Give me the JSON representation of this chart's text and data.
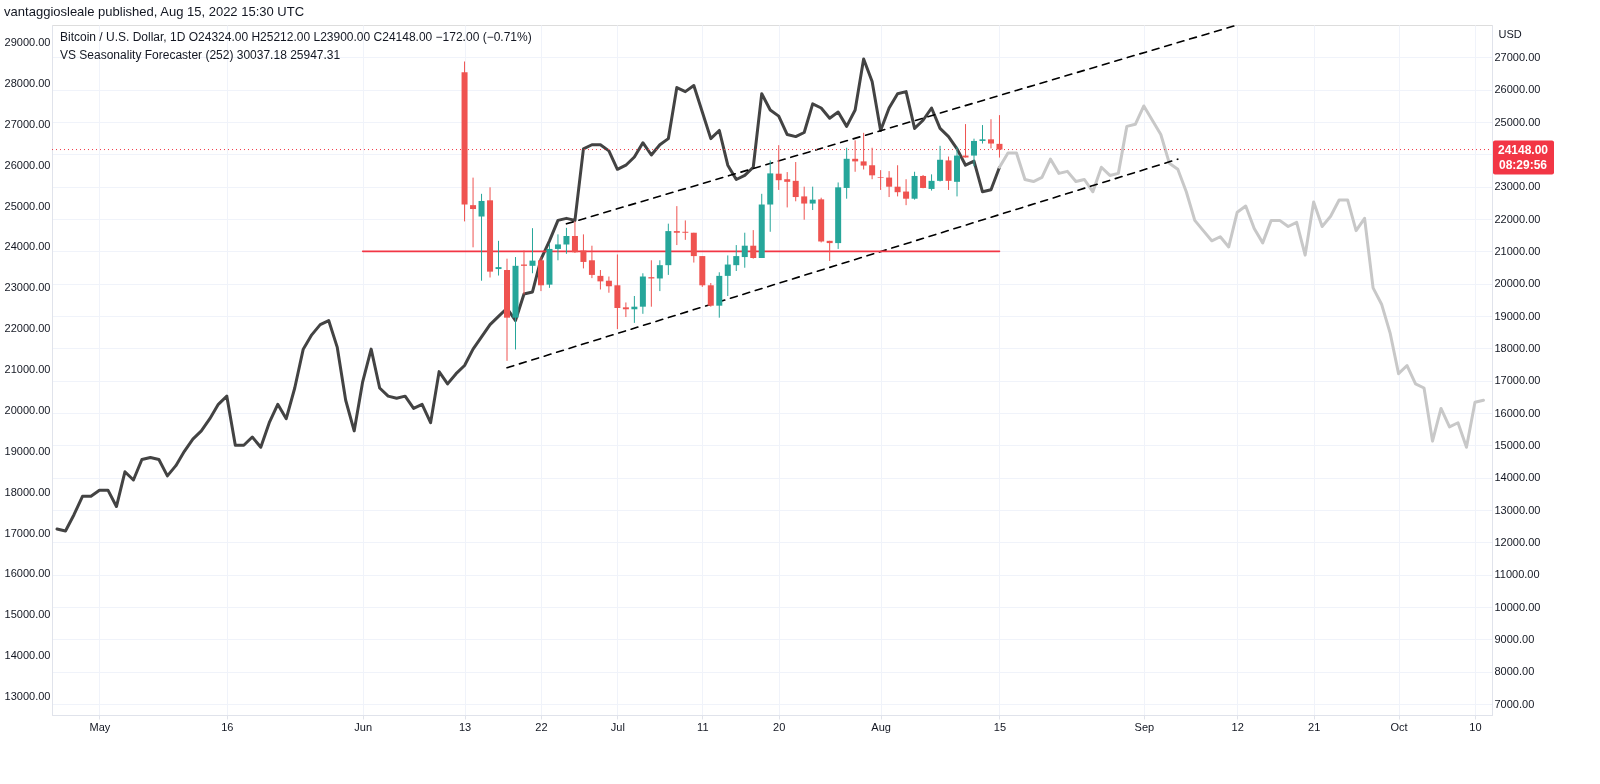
{
  "chart_data": {
    "type": "candlestick",
    "title": "vantaggiosleale published, Aug 15, 2022 15:30 UTC",
    "annotations": [
      "Bitcoin / U.S. Dollar, 1D  O24324.00  H25212.00  L23900.00  C24148.00  −172.00 (−0.71%)",
      "VS Seasonality Forecaster (252)  30037.18  25947.31"
    ],
    "y2label": "USD",
    "xlim": [
      "2022-04-26",
      "2022-10-11T10:00"
    ],
    "xticks": [
      {
        "value": "2022-05-01",
        "label": "May"
      },
      {
        "value": "2022-05-16",
        "label": "16"
      },
      {
        "value": "2022-06-01",
        "label": "Jun"
      },
      {
        "value": "2022-06-13",
        "label": "13"
      },
      {
        "value": "2022-06-22",
        "label": "22"
      },
      {
        "value": "2022-07-01",
        "label": "Jul"
      },
      {
        "value": "2022-07-11",
        "label": "11"
      },
      {
        "value": "2022-07-20",
        "label": "20"
      },
      {
        "value": "2022-08-01",
        "label": "Aug"
      },
      {
        "value": "2022-08-15",
        "label": "15"
      },
      {
        "value": "2022-09-01",
        "label": "Sep"
      },
      {
        "value": "2022-09-12",
        "label": "12"
      },
      {
        "value": "2022-09-21",
        "label": "21"
      },
      {
        "value": "2022-10-01",
        "label": "Oct"
      },
      {
        "value": "2022-10-10",
        "label": "10"
      }
    ],
    "ylim": [
      12550,
      29430
    ],
    "yticks": [
      {
        "value": 13000,
        "label": "13000.00"
      },
      {
        "value": 14000,
        "label": "14000.00"
      },
      {
        "value": 15000,
        "label": "15000.00"
      },
      {
        "value": 16000,
        "label": "16000.00"
      },
      {
        "value": 17000,
        "label": "17000.00"
      },
      {
        "value": 18000,
        "label": "18000.00"
      },
      {
        "value": 19000,
        "label": "19000.00"
      },
      {
        "value": 20000,
        "label": "20000.00"
      },
      {
        "value": 21000,
        "label": "21000.00"
      },
      {
        "value": 22000,
        "label": "22000.00"
      },
      {
        "value": 23000,
        "label": "23000.00"
      },
      {
        "value": 24000,
        "label": "24000.00"
      },
      {
        "value": 25000,
        "label": "25000.00"
      },
      {
        "value": 26000,
        "label": "26000.00"
      },
      {
        "value": 27000,
        "label": "27000.00"
      },
      {
        "value": 28000,
        "label": "28000.00"
      },
      {
        "value": 29000,
        "label": "29000.00"
      }
    ],
    "y2lim": [
      6660,
      28000
    ],
    "y2ticks": [
      {
        "value": 7000,
        "label": "7000.00"
      },
      {
        "value": 8000,
        "label": "8000.00"
      },
      {
        "value": 9000,
        "label": "9000.00"
      },
      {
        "value": 10000,
        "label": "10000.00"
      },
      {
        "value": 11000,
        "label": "11000.00"
      },
      {
        "value": 12000,
        "label": "12000.00"
      },
      {
        "value": 13000,
        "label": "13000.00"
      },
      {
        "value": 14000,
        "label": "14000.00"
      },
      {
        "value": 15000,
        "label": "15000.00"
      },
      {
        "value": 16000,
        "label": "16000.00"
      },
      {
        "value": 17000,
        "label": "17000.00"
      },
      {
        "value": 18000,
        "label": "18000.00"
      },
      {
        "value": 19000,
        "label": "19000.00"
      },
      {
        "value": 20000,
        "label": "20000.00"
      },
      {
        "value": 21000,
        "label": "21000.00"
      },
      {
        "value": 22000,
        "label": "22000.00"
      },
      {
        "value": 23000,
        "label": "23000.00"
      },
      {
        "value": 24000,
        "label": null
      },
      {
        "value": 25000,
        "label": "25000.00"
      },
      {
        "value": 26000,
        "label": "26000.00"
      },
      {
        "value": 27000,
        "label": "27000.00"
      }
    ],
    "grid": true,
    "ref_lines": [
      {
        "axis": "y2",
        "value": 24148,
        "label": "24148.00\n08:29:56",
        "color": "#f23645",
        "line_style": "dotted"
      }
    ],
    "series": [
      {
        "type": "line",
        "color": "#434343",
        "x": [
          "2022-04-26",
          "2022-04-27",
          "2022-04-28",
          "2022-04-29",
          "2022-04-30",
          "2022-05-01",
          "2022-05-02",
          "2022-05-03",
          "2022-05-04",
          "2022-05-05",
          "2022-05-06",
          "2022-05-07",
          "2022-05-08",
          "2022-05-09",
          "2022-05-10",
          "2022-05-11",
          "2022-05-12",
          "2022-05-13",
          "2022-05-14",
          "2022-05-15",
          "2022-05-16",
          "2022-05-17",
          "2022-05-18",
          "2022-05-19",
          "2022-05-20",
          "2022-05-21",
          "2022-05-22",
          "2022-05-23",
          "2022-05-24",
          "2022-05-25",
          "2022-05-26",
          "2022-05-27",
          "2022-05-28",
          "2022-05-29",
          "2022-05-30",
          "2022-05-31",
          "2022-06-01",
          "2022-06-02",
          "2022-06-03",
          "2022-06-04",
          "2022-06-05",
          "2022-06-06",
          "2022-06-07",
          "2022-06-08",
          "2022-06-09",
          "2022-06-10",
          "2022-06-11",
          "2022-06-12",
          "2022-06-13",
          "2022-06-14",
          "2022-06-15",
          "2022-06-16",
          "2022-06-17",
          "2022-06-18",
          "2022-06-19",
          "2022-06-20",
          "2022-06-21",
          "2022-06-22",
          "2022-06-23",
          "2022-06-24",
          "2022-06-25",
          "2022-06-26",
          "2022-06-27",
          "2022-06-28",
          "2022-06-29",
          "2022-06-30",
          "2022-07-01",
          "2022-07-02",
          "2022-07-03",
          "2022-07-04",
          "2022-07-05",
          "2022-07-06",
          "2022-07-07",
          "2022-07-08",
          "2022-07-09",
          "2022-07-10",
          "2022-07-11",
          "2022-07-12",
          "2022-07-13",
          "2022-07-14",
          "2022-07-15",
          "2022-07-16",
          "2022-07-17",
          "2022-07-18",
          "2022-07-19",
          "2022-07-20",
          "2022-07-21",
          "2022-07-22",
          "2022-07-23",
          "2022-07-24",
          "2022-07-25",
          "2022-07-26",
          "2022-07-27",
          "2022-07-28",
          "2022-07-29",
          "2022-07-30",
          "2022-07-31",
          "2022-08-01",
          "2022-08-02",
          "2022-08-03",
          "2022-08-04",
          "2022-08-05",
          "2022-08-06",
          "2022-08-07",
          "2022-08-08",
          "2022-08-09",
          "2022-08-10",
          "2022-08-11",
          "2022-08-12",
          "2022-08-13",
          "2022-08-14",
          "2022-08-15"
        ],
        "values": [
          17100,
          17050,
          17450,
          17900,
          17900,
          18050,
          18050,
          17650,
          18500,
          18300,
          18800,
          18850,
          18800,
          18400,
          18650,
          19000,
          19300,
          19500,
          19800,
          20150,
          20350,
          19150,
          19150,
          19350,
          19100,
          19700,
          20150,
          19800,
          20550,
          21500,
          21850,
          22100,
          22200,
          21550,
          20250,
          19500,
          20700,
          21500,
          20550,
          20350,
          20300,
          20350,
          20050,
          20150,
          19700,
          20950,
          20650,
          20900,
          21100,
          21500,
          21800,
          22100,
          22300,
          22500,
          22200,
          22850,
          22900,
          23700,
          24150,
          24650,
          24700,
          24650,
          26400,
          26500,
          26500,
          26350,
          25900,
          26000,
          26200,
          26550,
          26250,
          26500,
          26650,
          27900,
          27800,
          27950,
          27300,
          26650,
          26850,
          26000,
          25650,
          25750,
          25950,
          27750,
          27350,
          27200,
          26750,
          26700,
          26800,
          27500,
          27400,
          27150,
          27300,
          26950,
          27350,
          28600,
          28050,
          26850,
          27400,
          27750,
          27800,
          26900,
          27100,
          27400,
          26900,
          26700,
          26400,
          26000,
          26100,
          25350,
          25400,
          25950
        ]
      },
      {
        "type": "line",
        "color": "#c8c8c8",
        "x": [
          "2022-08-15",
          "2022-08-16",
          "2022-08-17",
          "2022-08-18",
          "2022-08-19",
          "2022-08-20",
          "2022-08-21",
          "2022-08-22",
          "2022-08-23",
          "2022-08-24",
          "2022-08-25",
          "2022-08-26",
          "2022-08-27",
          "2022-08-28",
          "2022-08-29",
          "2022-08-30",
          "2022-08-31",
          "2022-09-01",
          "2022-09-02",
          "2022-09-03",
          "2022-09-04",
          "2022-09-05",
          "2022-09-06",
          "2022-09-07",
          "2022-09-08",
          "2022-09-09",
          "2022-09-10",
          "2022-09-11",
          "2022-09-12",
          "2022-09-13",
          "2022-09-14",
          "2022-09-15",
          "2022-09-16",
          "2022-09-17",
          "2022-09-18",
          "2022-09-19",
          "2022-09-20",
          "2022-09-21",
          "2022-09-22",
          "2022-09-23",
          "2022-09-24",
          "2022-09-25",
          "2022-09-26",
          "2022-09-27",
          "2022-09-28",
          "2022-09-29",
          "2022-09-30",
          "2022-10-01",
          "2022-10-02",
          "2022-10-03",
          "2022-10-04",
          "2022-10-05",
          "2022-10-06",
          "2022-10-07",
          "2022-10-08",
          "2022-10-09",
          "2022-10-10",
          "2022-10-11"
        ],
        "values": [
          25950,
          26300,
          26300,
          25650,
          25600,
          25700,
          26150,
          25800,
          25850,
          25600,
          25650,
          25350,
          25950,
          25750,
          25800,
          26950,
          27000,
          27450,
          27100,
          26750,
          26050,
          25900,
          25350,
          24650,
          24400,
          24150,
          24250,
          24000,
          24850,
          25000,
          24450,
          24100,
          24650,
          24650,
          24500,
          24600,
          23800,
          25100,
          24500,
          24750,
          25150,
          25150,
          24400,
          24700,
          23000,
          22600,
          21900,
          20900,
          21100,
          20650,
          20550,
          19250,
          20050,
          19600,
          19700,
          19100,
          20200,
          20250
        ]
      },
      {
        "type": "line",
        "axis": "y2",
        "color": "#000000",
        "line_style": "dashed",
        "x": [
          "2022-06-25",
          "2022-09-12"
        ],
        "values": [
          21850,
          28000
        ]
      },
      {
        "type": "line",
        "axis": "y2",
        "color": "#000000",
        "line_style": "dashed",
        "x": [
          "2022-06-18",
          "2022-09-05"
        ],
        "values": [
          17400,
          23850
        ]
      },
      {
        "type": "line",
        "axis": "y2",
        "color": "#f23645",
        "x": [
          "2022-06-01",
          "2022-08-15"
        ],
        "values": [
          21000,
          21000
        ]
      },
      {
        "axis": "y2",
        "x": [
          "2022-06-13",
          "2022-06-14",
          "2022-06-15",
          "2022-06-16",
          "2022-06-17",
          "2022-06-18",
          "2022-06-19",
          "2022-06-20",
          "2022-06-21",
          "2022-06-22",
          "2022-06-23",
          "2022-06-24",
          "2022-06-25",
          "2022-06-26",
          "2022-06-27",
          "2022-06-28",
          "2022-06-29",
          "2022-06-30",
          "2022-07-01",
          "2022-07-02",
          "2022-07-03",
          "2022-07-04",
          "2022-07-05",
          "2022-07-06",
          "2022-07-07",
          "2022-07-08",
          "2022-07-09",
          "2022-07-10",
          "2022-07-11",
          "2022-07-12",
          "2022-07-13",
          "2022-07-14",
          "2022-07-15",
          "2022-07-16",
          "2022-07-17",
          "2022-07-18",
          "2022-07-19",
          "2022-07-20",
          "2022-07-21",
          "2022-07-22",
          "2022-07-23",
          "2022-07-24",
          "2022-07-25",
          "2022-07-26",
          "2022-07-27",
          "2022-07-28",
          "2022-07-29",
          "2022-07-30",
          "2022-07-31",
          "2022-08-01",
          "2022-08-02",
          "2022-08-03",
          "2022-08-04",
          "2022-08-05",
          "2022-08-06",
          "2022-08-07",
          "2022-08-08",
          "2022-08-09",
          "2022-08-10",
          "2022-08-11",
          "2022-08-12",
          "2022-08-13",
          "2022-08-14",
          "2022-08-15"
        ],
        "ohlc": [
          [
            26540,
            26871,
            21926,
            22448
          ],
          [
            22428,
            23280,
            21124,
            22308
          ],
          [
            22077,
            22779,
            20091,
            22558
          ],
          [
            22578,
            22980,
            20191,
            20372
          ],
          [
            20452,
            21325,
            20251,
            20512
          ],
          [
            20422,
            20773,
            17613,
            18948
          ],
          [
            18948,
            20823,
            17965,
            20552
          ],
          [
            20592,
            21024,
            19669,
            20552
          ],
          [
            20552,
            21716,
            20322,
            20713
          ],
          [
            20723,
            20823,
            19770,
            19950
          ],
          [
            19970,
            21225,
            19870,
            21074
          ],
          [
            21074,
            21525,
            20723,
            21214
          ],
          [
            21214,
            21726,
            20923,
            21475
          ],
          [
            21475,
            21926,
            20950,
            20973
          ],
          [
            21024,
            21525,
            20472,
            20672
          ],
          [
            20723,
            21174,
            20171,
            20271
          ],
          [
            20241,
            20422,
            19820,
            20071
          ],
          [
            20091,
            20221,
            19720,
            19920
          ],
          [
            19950,
            20903,
            18596,
            19248
          ],
          [
            19268,
            19419,
            18968,
            19208
          ],
          [
            19208,
            19619,
            18787,
            19288
          ],
          [
            19288,
            20321,
            19068,
            20221
          ],
          [
            20201,
            20723,
            19288,
            20161
          ],
          [
            20161,
            20723,
            19770,
            20572
          ],
          [
            20572,
            21856,
            20271,
            21626
          ],
          [
            21626,
            22398,
            21194,
            21575
          ],
          [
            21605,
            21956,
            21355,
            21575
          ],
          [
            21575,
            21575,
            20653,
            20853
          ],
          [
            20853,
            20853,
            19900,
            19950
          ],
          [
            19950,
            20021,
            19288,
            19319
          ],
          [
            19319,
            20352,
            18948,
            20241
          ],
          [
            20241,
            20873,
            19619,
            20592
          ],
          [
            20572,
            21194,
            20392,
            20853
          ],
          [
            20823,
            21576,
            20492,
            21174
          ],
          [
            21174,
            21656,
            20773,
            20793
          ],
          [
            20793,
            22779,
            20793,
            22448
          ],
          [
            22448,
            23812,
            21605,
            23411
          ],
          [
            23401,
            24283,
            22899,
            23200
          ],
          [
            23230,
            23451,
            22358,
            23150
          ],
          [
            23180,
            23762,
            22548,
            22679
          ],
          [
            22699,
            23000,
            21977,
            22478
          ],
          [
            22478,
            23000,
            22277,
            22598
          ],
          [
            22608,
            22659,
            21275,
            21305
          ],
          [
            21325,
            21325,
            20703,
            21255
          ],
          [
            21255,
            23130,
            21074,
            22980
          ],
          [
            22960,
            24203,
            22628,
            23862
          ],
          [
            23862,
            24434,
            23461,
            23782
          ],
          [
            23782,
            24665,
            23531,
            23652
          ],
          [
            23662,
            24203,
            23230,
            23351
          ],
          [
            23291,
            23511,
            22899,
            23271
          ],
          [
            23281,
            23481,
            22679,
            22999
          ],
          [
            22999,
            23662,
            22699,
            22829
          ],
          [
            22849,
            23230,
            22428,
            22628
          ],
          [
            22628,
            23461,
            22598,
            23331
          ],
          [
            23331,
            23361,
            22950,
            22960
          ],
          [
            22930,
            23381,
            22879,
            23180
          ],
          [
            23180,
            24263,
            23160,
            23832
          ],
          [
            23812,
            23932,
            22899,
            23180
          ],
          [
            23150,
            24233,
            22699,
            23962
          ],
          [
            23962,
            24935,
            23902,
            23902
          ],
          [
            23962,
            24484,
            23631,
            24414
          ],
          [
            24414,
            24905,
            24334,
            24464
          ],
          [
            24464,
            25086,
            24183,
            24334
          ],
          [
            24324,
            25212,
            23900,
            24148
          ]
        ],
        "colors": [
          "#ef5350",
          "#ef5350",
          "#26a69a",
          "#ef5350",
          "#26a69a",
          "#ef5350",
          "#26a69a",
          "#ef5350",
          "#26a69a",
          "#ef5350",
          "#26a69a",
          "#26a69a",
          "#26a69a",
          "#ef5350",
          "#ef5350",
          "#ef5350",
          "#ef5350",
          "#ef5350",
          "#ef5350",
          "#ef5350",
          "#26a69a",
          "#26a69a",
          "#ef5350",
          "#26a69a",
          "#26a69a",
          "#ef5350",
          "#ef5350",
          "#ef5350",
          "#ef5350",
          "#ef5350",
          "#26a69a",
          "#26a69a",
          "#26a69a",
          "#26a69a",
          "#ef5350",
          "#26a69a",
          "#26a69a",
          "#ef5350",
          "#ef5350",
          "#ef5350",
          "#ef5350",
          "#26a69a",
          "#ef5350",
          "#ef5350",
          "#26a69a",
          "#26a69a",
          "#ef5350",
          "#ef5350",
          "#ef5350",
          "#ef5350",
          "#ef5350",
          "#ef5350",
          "#ef5350",
          "#26a69a",
          "#ef5350",
          "#26a69a",
          "#26a69a",
          "#ef5350",
          "#26a69a",
          "#ef5350",
          "#26a69a",
          "#26a69a",
          "#ef5350",
          "#ef5350"
        ]
      }
    ]
  }
}
